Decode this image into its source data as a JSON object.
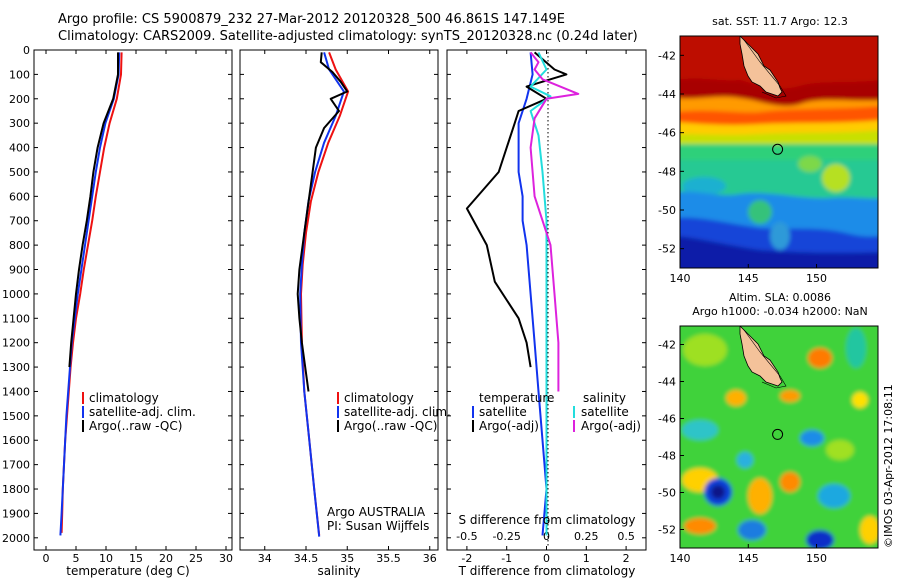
{
  "header": {
    "line1": "Argo profile: CS 5900879_232 27-Mar-2012 20120328_500 46.861S 147.149E",
    "line2": "Climatology: CARS2009. Satellite-adjusted climatology: synTS_20120328.nc (0.24d later)"
  },
  "colors": {
    "climatology": "#ee1111",
    "satellite": "#1133ee",
    "argo": "#000000",
    "satellite_s": "#22dddd",
    "argo_s": "#dd22dd"
  },
  "chart_data": [
    {
      "type": "line",
      "xlabel": "temperature (deg C)",
      "ylabel": "",
      "xlim": [
        -2,
        31
      ],
      "ylim": [
        2050,
        0
      ],
      "xticks": [
        "0",
        "5",
        "10",
        "15",
        "20",
        "25",
        "30"
      ],
      "yticks": [
        "0",
        "100",
        "200",
        "300",
        "400",
        "500",
        "600",
        "700",
        "800",
        "900",
        "1000",
        "1100",
        "1200",
        "1300",
        "1400",
        "1500",
        "1600",
        "1700",
        "1800",
        "1900",
        "2000"
      ],
      "legend": [
        "climatology",
        "satellite-adj. clim.",
        "Argo(..raw -QC)"
      ],
      "series": [
        {
          "name": "climatology",
          "color": "climatology",
          "points": [
            [
              12.6,
              10
            ],
            [
              12.5,
              100
            ],
            [
              11.8,
              200
            ],
            [
              10.6,
              300
            ],
            [
              9.7,
              400
            ],
            [
              9.0,
              500
            ],
            [
              8.3,
              600
            ],
            [
              7.7,
              700
            ],
            [
              7.0,
              800
            ],
            [
              6.3,
              900
            ],
            [
              5.7,
              1000
            ],
            [
              5.0,
              1100
            ],
            [
              4.5,
              1200
            ],
            [
              4.1,
              1300
            ],
            [
              3.8,
              1400
            ],
            [
              3.5,
              1500
            ],
            [
              3.2,
              1600
            ],
            [
              3.0,
              1700
            ],
            [
              2.8,
              1800
            ],
            [
              2.7,
              1900
            ],
            [
              2.6,
              1980
            ]
          ]
        },
        {
          "name": "satellite-adj. clim.",
          "color": "satellite",
          "points": [
            [
              12.2,
              10
            ],
            [
              12.1,
              100
            ],
            [
              11.3,
              200
            ],
            [
              9.9,
              300
            ],
            [
              9.0,
              400
            ],
            [
              8.3,
              500
            ],
            [
              7.7,
              600
            ],
            [
              7.1,
              700
            ],
            [
              6.5,
              800
            ],
            [
              5.9,
              900
            ],
            [
              5.3,
              1000
            ],
            [
              4.8,
              1100
            ],
            [
              4.3,
              1200
            ],
            [
              4.0,
              1300
            ],
            [
              3.7,
              1400
            ],
            [
              3.4,
              1500
            ],
            [
              3.2,
              1600
            ],
            [
              3.0,
              1700
            ],
            [
              2.8,
              1800
            ],
            [
              2.6,
              1900
            ],
            [
              2.4,
              1990
            ]
          ]
        },
        {
          "name": "Argo(..raw -QC)",
          "color": "argo",
          "points": [
            [
              12.0,
              10
            ],
            [
              12.0,
              100
            ],
            [
              11.2,
              200
            ],
            [
              9.6,
              300
            ],
            [
              8.6,
              400
            ],
            [
              7.9,
              500
            ],
            [
              7.4,
              600
            ],
            [
              6.8,
              700
            ],
            [
              6.1,
              800
            ],
            [
              5.5,
              900
            ],
            [
              5.0,
              1000
            ],
            [
              4.6,
              1100
            ],
            [
              4.2,
              1200
            ],
            [
              3.9,
              1300
            ]
          ]
        }
      ]
    },
    {
      "type": "line",
      "xlabel": "salinity",
      "xlim": [
        33.7,
        36.1
      ],
      "ylim": [
        2050,
        0
      ],
      "xticks": [
        "34",
        "34.5",
        "35",
        "35.5",
        "36"
      ],
      "legend": [
        "climatology",
        "satellite-adj. clim.",
        "Argo(..raw -QC)"
      ],
      "annotations": [
        "Argo AUSTRALIA",
        "PI: Susan Wijffels"
      ],
      "series": [
        {
          "name": "climatology",
          "color": "climatology",
          "points": [
            [
              34.78,
              10
            ],
            [
              34.86,
              80
            ],
            [
              35.01,
              170
            ],
            [
              34.91,
              270
            ],
            [
              34.77,
              380
            ],
            [
              34.65,
              500
            ],
            [
              34.56,
              620
            ],
            [
              34.5,
              750
            ],
            [
              34.46,
              880
            ],
            [
              34.44,
              1000
            ],
            [
              34.45,
              1200
            ],
            [
              34.48,
              1400
            ],
            [
              34.54,
              1600
            ],
            [
              34.6,
              1800
            ],
            [
              34.66,
              1990
            ]
          ]
        },
        {
          "name": "satellite-adj. clim.",
          "color": "satellite",
          "points": [
            [
              34.72,
              10
            ],
            [
              34.78,
              80
            ],
            [
              34.96,
              170
            ],
            [
              34.86,
              270
            ],
            [
              34.72,
              380
            ],
            [
              34.61,
              500
            ],
            [
              34.53,
              620
            ],
            [
              34.48,
              750
            ],
            [
              34.45,
              880
            ],
            [
              34.43,
              1000
            ],
            [
              34.44,
              1200
            ],
            [
              34.48,
              1400
            ],
            [
              34.54,
              1600
            ],
            [
              34.6,
              1800
            ],
            [
              34.66,
              1995
            ]
          ]
        },
        {
          "name": "Argo(..raw -QC)",
          "color": "argo",
          "points": [
            [
              34.69,
              10
            ],
            [
              34.68,
              50
            ],
            [
              34.82,
              90
            ],
            [
              34.92,
              130
            ],
            [
              35.0,
              170
            ],
            [
              34.8,
              200
            ],
            [
              34.9,
              250
            ],
            [
              34.72,
              320
            ],
            [
              34.62,
              400
            ],
            [
              34.58,
              500
            ],
            [
              34.54,
              600
            ],
            [
              34.48,
              750
            ],
            [
              34.42,
              900
            ],
            [
              34.4,
              1000
            ],
            [
              34.42,
              1100
            ],
            [
              34.45,
              1200
            ],
            [
              34.49,
              1300
            ],
            [
              34.53,
              1400
            ]
          ]
        }
      ]
    },
    {
      "type": "line",
      "xlabel": "T difference from climatology",
      "xlabel_top": "S difference from climatology",
      "xlim": [
        -2.5,
        2.5
      ],
      "ylim": [
        2050,
        0
      ],
      "xticks": [
        "-2",
        "-1",
        "0",
        "1",
        "2"
      ],
      "xticks_s": [
        "-0.5",
        "-0.25",
        "0",
        "0.25",
        "0.5"
      ],
      "legend_left_title": "temperature",
      "legend_right_title": "salinity",
      "legend": [
        "satellite",
        "Argo(-adj)",
        "satellite",
        "Argo(-adj)"
      ],
      "series": [
        {
          "name": "satellite",
          "group": "temperature",
          "color": "satellite",
          "points": [
            [
              -0.4,
              10
            ],
            [
              -0.35,
              100
            ],
            [
              -0.5,
              200
            ],
            [
              -0.7,
              300
            ],
            [
              -0.7,
              400
            ],
            [
              -0.7,
              500
            ],
            [
              -0.6,
              600
            ],
            [
              -0.6,
              700
            ],
            [
              -0.5,
              800
            ],
            [
              -0.4,
              1000
            ],
            [
              -0.3,
              1200
            ],
            [
              -0.2,
              1400
            ],
            [
              -0.1,
              1600
            ],
            [
              0.0,
              1800
            ],
            [
              -0.1,
              1990
            ]
          ]
        },
        {
          "name": "Argo(-adj)",
          "group": "temperature",
          "color": "argo_s_black",
          "points": [
            [
              -0.3,
              10
            ],
            [
              0.2,
              80
            ],
            [
              0.5,
              100
            ],
            [
              -0.5,
              150
            ],
            [
              0.0,
              200
            ],
            [
              -0.7,
              250
            ],
            [
              -0.8,
              300
            ],
            [
              -1.0,
              400
            ],
            [
              -1.2,
              500
            ],
            [
              -2.0,
              650
            ],
            [
              -1.5,
              800
            ],
            [
              -1.3,
              950
            ],
            [
              -0.7,
              1100
            ],
            [
              -0.5,
              1200
            ],
            [
              -0.4,
              1300
            ]
          ]
        },
        {
          "name": "satellite",
          "group": "salinity",
          "color": "satellite_s",
          "points": [
            [
              -0.2,
              10
            ],
            [
              0.0,
              80
            ],
            [
              -0.4,
              150
            ],
            [
              0.1,
              190
            ],
            [
              -0.4,
              250
            ],
            [
              -0.2,
              350
            ],
            [
              -0.1,
              500
            ],
            [
              0.0,
              700
            ],
            [
              0.0,
              1000
            ],
            [
              0.0,
              1500
            ],
            [
              0.0,
              1990
            ]
          ]
        },
        {
          "name": "Argo(-adj)",
          "group": "salinity",
          "color": "argo_s",
          "points": [
            [
              -0.4,
              10
            ],
            [
              -0.2,
              50
            ],
            [
              -0.3,
              80
            ],
            [
              -0.1,
              120
            ],
            [
              0.8,
              180
            ],
            [
              0.0,
              200
            ],
            [
              -0.3,
              280
            ],
            [
              -0.4,
              400
            ],
            [
              -0.3,
              600
            ],
            [
              0.1,
              800
            ],
            [
              0.2,
              1000
            ],
            [
              0.3,
              1200
            ],
            [
              0.3,
              1400
            ]
          ]
        }
      ]
    }
  ],
  "maps": [
    {
      "title": "sat. SST: 11.7 Argo: 12.3",
      "xticks": [
        "140",
        "145",
        "150"
      ],
      "yticks": [
        "-42",
        "-44",
        "-46",
        "-48",
        "-50",
        "-52"
      ],
      "marker": [
        147.149,
        -46.861
      ]
    },
    {
      "title1": "Altim. SLA: 0.0086",
      "title2": "Argo h1000: -0.034 h2000: NaN",
      "xticks": [
        "140",
        "145",
        "150"
      ],
      "yticks": [
        "-42",
        "-44",
        "-46",
        "-48",
        "-50",
        "-52"
      ],
      "marker": [
        147.149,
        -46.861
      ]
    }
  ],
  "footer": {
    "stamp": "©IMOS 03-Apr-2012 17:08:11"
  }
}
